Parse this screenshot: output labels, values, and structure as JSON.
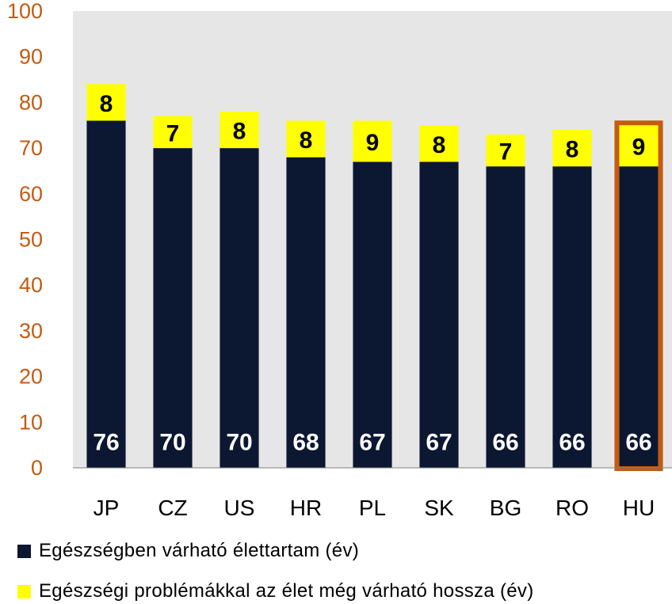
{
  "chart_data": {
    "type": "bar",
    "stacked": true,
    "categories": [
      "JP",
      "CZ",
      "US",
      "HR",
      "PL",
      "SK",
      "BG",
      "RO",
      "HU"
    ],
    "series": [
      {
        "name": "Egészségben várható élettartam (év)",
        "color": "#0c1731",
        "values": [
          76,
          70,
          70,
          68,
          67,
          67,
          66,
          66,
          66
        ]
      },
      {
        "name": "Egészségi problémákkal az élet még várható hossza (év)",
        "color": "#ffff00",
        "values": [
          8,
          7,
          8,
          8,
          9,
          8,
          7,
          8,
          9
        ]
      }
    ],
    "y_tick_labels": [
      "0",
      "10",
      "20",
      "30",
      "40",
      "50",
      "60",
      "70",
      "80",
      "90",
      "100"
    ],
    "ylim": [
      0,
      100
    ],
    "grid": false,
    "plot_background": "#e6e6e6",
    "highlight": {
      "category": "HU",
      "color": "#c55a11"
    },
    "tick_color": "#c55a11",
    "legend_position": "bottom-left"
  }
}
